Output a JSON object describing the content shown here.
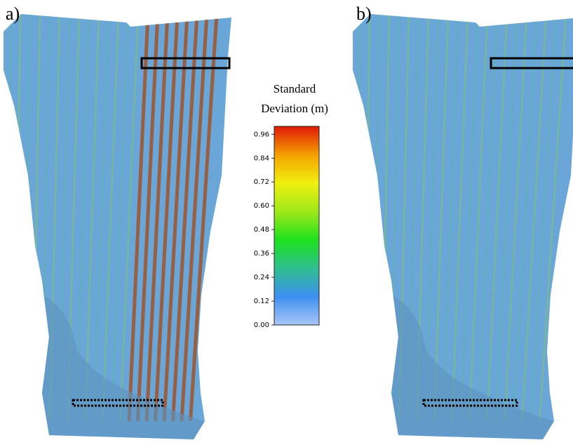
{
  "panels": [
    {
      "label": "a)"
    },
    {
      "label": "b)"
    }
  ],
  "colorbar": {
    "title": [
      "Standard",
      "Deviation (m)"
    ],
    "range": [
      0,
      1.0
    ],
    "colors": [
      "#a9c6f7",
      "#3d8ff0",
      "#2fbf8f",
      "#1ee01e",
      "#9fe81a",
      "#f0f010",
      "#f5a000",
      "#e01808"
    ],
    "ticks": [
      {
        "value": 0,
        "label": "0.00"
      },
      {
        "value": 0.12,
        "label": "0.12"
      },
      {
        "value": 0.24,
        "label": "0.24"
      },
      {
        "value": 0.36,
        "label": "0.36"
      },
      {
        "value": 0.48,
        "label": "0.48"
      },
      {
        "value": 0.6,
        "label": "0.60"
      },
      {
        "value": 0.72,
        "label": "0.72"
      },
      {
        "value": 0.84,
        "label": "0.84"
      },
      {
        "value": 0.96,
        "label": "0.96"
      }
    ]
  }
}
